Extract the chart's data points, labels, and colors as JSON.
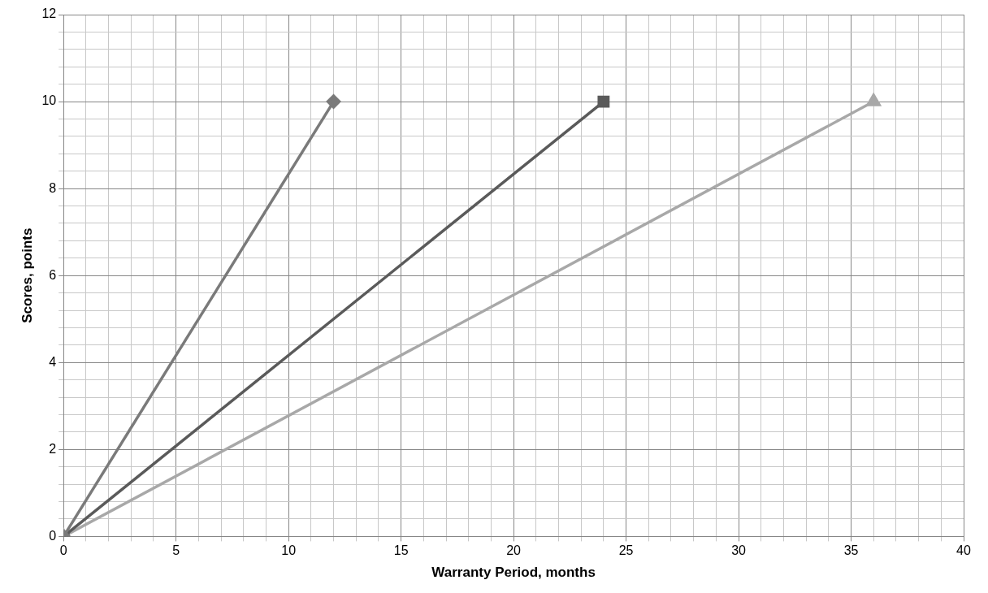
{
  "chart_data": {
    "type": "line",
    "xlabel": "Warranty Period, months",
    "ylabel": "Scores, points",
    "series": [
      {
        "color": "#7a7a7a",
        "marker": "diamond",
        "x": [
          0,
          12
        ],
        "values": [
          0,
          10
        ]
      },
      {
        "color": "#5a5a5a",
        "marker": "square",
        "x": [
          0,
          24
        ],
        "values": [
          0,
          10
        ]
      },
      {
        "color": "#a8a8a8",
        "marker": "triangle",
        "x": [
          0,
          36
        ],
        "values": [
          0,
          10
        ]
      }
    ],
    "xlim": [
      0,
      40
    ],
    "xticks": [
      0,
      {
        "value": 1,
        "label": null
      },
      {
        "value": 2,
        "label": null
      },
      {
        "value": 3,
        "label": null
      },
      {
        "value": 4,
        "label": null
      },
      5,
      {
        "value": 6,
        "label": null
      },
      {
        "value": 7,
        "label": null
      },
      {
        "value": 8,
        "label": null
      },
      {
        "value": 9,
        "label": null
      },
      10,
      {
        "value": 11,
        "label": null
      },
      {
        "value": 12,
        "label": null
      },
      {
        "value": 13,
        "label": null
      },
      {
        "value": 14,
        "label": null
      },
      15,
      {
        "value": 16,
        "label": null
      },
      {
        "value": 17,
        "label": null
      },
      {
        "value": 18,
        "label": null
      },
      {
        "value": 19,
        "label": null
      },
      20,
      {
        "value": 21,
        "label": null
      },
      {
        "value": 22,
        "label": null
      },
      {
        "value": 23,
        "label": null
      },
      {
        "value": 24,
        "label": null
      },
      25,
      {
        "value": 26,
        "label": null
      },
      {
        "value": 27,
        "label": null
      },
      {
        "value": 28,
        "label": null
      },
      {
        "value": 29,
        "label": null
      },
      30,
      {
        "value": 31,
        "label": null
      },
      {
        "value": 32,
        "label": null
      },
      {
        "value": 33,
        "label": null
      },
      {
        "value": 34,
        "label": null
      },
      35,
      {
        "value": 36,
        "label": null
      },
      {
        "value": 37,
        "label": null
      },
      {
        "value": 38,
        "label": null
      },
      {
        "value": 39,
        "label": null
      },
      40
    ],
    "ylim": [
      0,
      12
    ],
    "yticks": [
      0,
      {
        "value": 0.4,
        "label": null
      },
      {
        "value": 0.8,
        "label": null
      },
      {
        "value": 1.2,
        "label": null
      },
      {
        "value": 1.6,
        "label": null
      },
      2,
      {
        "value": 2.4,
        "label": null
      },
      {
        "value": 2.8,
        "label": null
      },
      {
        "value": 3.2,
        "label": null
      },
      {
        "value": 3.6,
        "label": null
      },
      4,
      {
        "value": 4.4,
        "label": null
      },
      {
        "value": 4.8,
        "label": null
      },
      {
        "value": 5.2,
        "label": null
      },
      {
        "value": 5.6,
        "label": null
      },
      6,
      {
        "value": 6.4,
        "label": null
      },
      {
        "value": 6.8,
        "label": null
      },
      {
        "value": 7.2,
        "label": null
      },
      {
        "value": 7.6,
        "label": null
      },
      8,
      {
        "value": 8.4,
        "label": null
      },
      {
        "value": 8.8,
        "label": null
      },
      {
        "value": 9.2,
        "label": null
      },
      {
        "value": 9.6,
        "label": null
      },
      10,
      {
        "value": 10.4,
        "label": null
      },
      {
        "value": 10.8,
        "label": null
      },
      {
        "value": 11.2,
        "label": null
      },
      {
        "value": 11.6,
        "label": null
      },
      12
    ],
    "grid": true,
    "legend": false,
    "line_style": "solid"
  }
}
